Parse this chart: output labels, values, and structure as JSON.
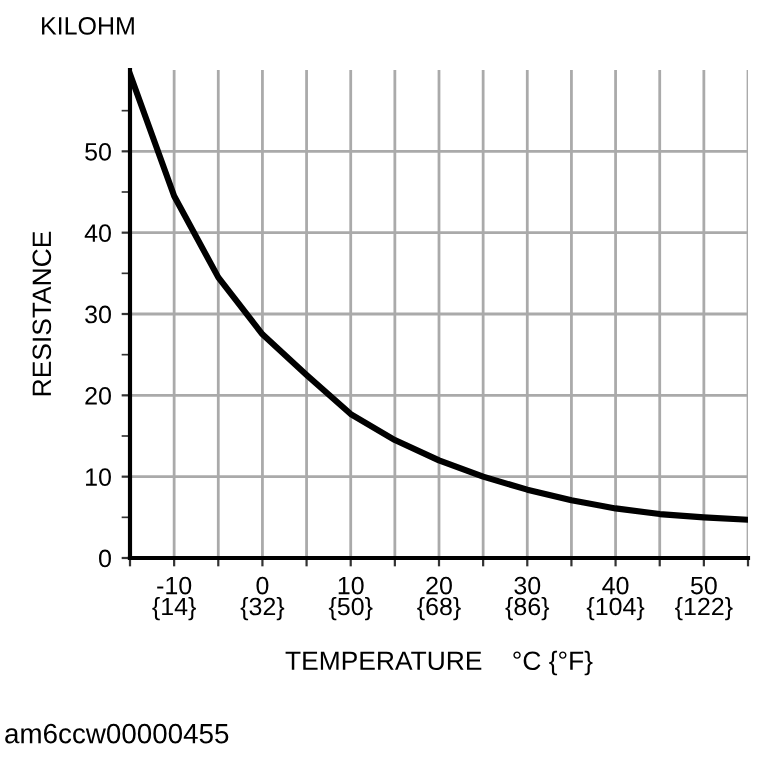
{
  "chart_data": {
    "type": "line",
    "xlabel": "TEMPERATURE    °C {°F}",
    "ylabel": "RESISTANCE",
    "annotations": [
      "KILOHM",
      "am6ccw00000455"
    ],
    "x": [
      -15,
      -10,
      -5,
      0,
      5,
      10,
      15,
      20,
      25,
      30,
      35,
      40,
      45,
      50,
      55
    ],
    "series": [
      {
        "color": "#000000",
        "values": [
          59.5,
          44.5,
          34.5,
          27.5,
          22.5,
          17.7,
          14.5,
          12,
          10,
          8.4,
          7.1,
          6.1,
          5.4,
          5,
          4.7
        ]
      }
    ],
    "xlim": [
      -15,
      55
    ],
    "ylim": [
      0,
      60
    ],
    "xticks": [
      {
        "value": -15,
        "label": null
      },
      -10,
      {
        "value": -5,
        "label": null
      },
      0,
      {
        "value": 5,
        "label": null
      },
      10,
      {
        "value": 15,
        "label": null
      },
      20,
      {
        "value": 25,
        "label": null
      },
      30,
      {
        "value": 35,
        "label": null
      },
      40,
      {
        "value": 45,
        "label": null
      },
      50,
      {
        "value": 55,
        "label": null
      }
    ],
    "x2lim": [
      5,
      131
    ],
    "x2ticks": [
      {
        "value": 14,
        "label": "{14}"
      },
      {
        "value": 32,
        "label": "{32}"
      },
      {
        "value": 50,
        "label": "{50}"
      },
      {
        "value": 68,
        "label": "{68}"
      },
      {
        "value": 86,
        "label": "{86}"
      },
      {
        "value": 104,
        "label": "{104}"
      },
      {
        "value": 122,
        "label": "{122}"
      }
    ],
    "yticks": [
      0,
      10,
      20,
      30,
      40,
      50
    ],
    "grid": true,
    "marker": "none",
    "line_style": "solid"
  }
}
